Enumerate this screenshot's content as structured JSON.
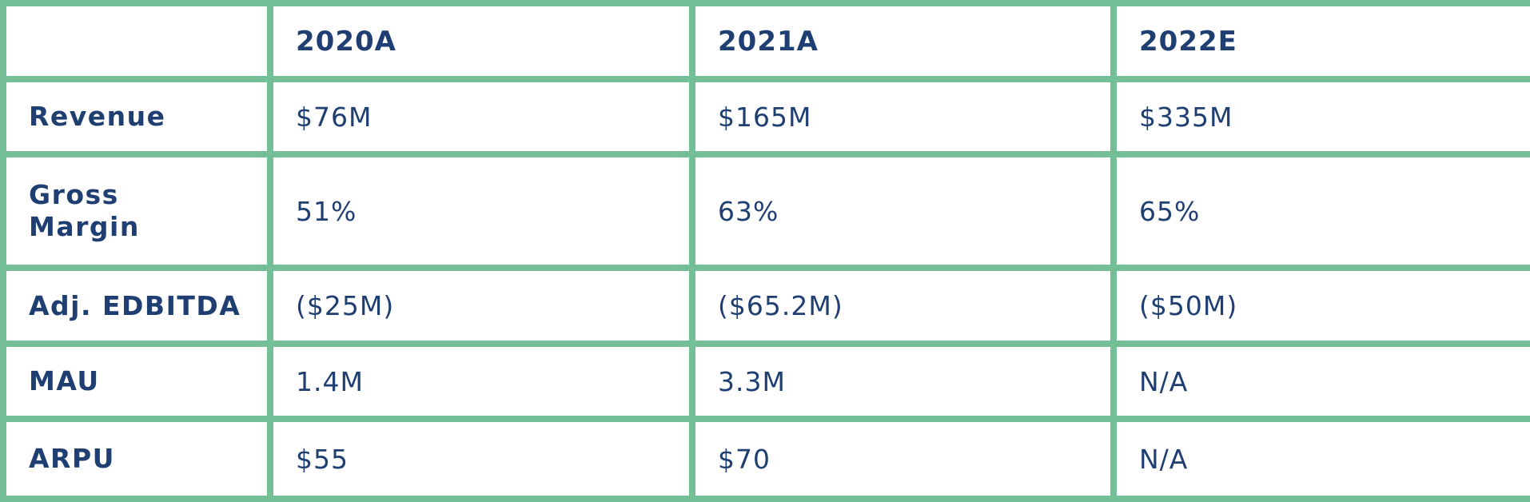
{
  "table": {
    "columns": [
      "",
      "2020A",
      "2021A",
      "2022E"
    ],
    "rows": [
      {
        "label": "Revenue",
        "values": [
          "$76M",
          "$165M",
          "$335M"
        ]
      },
      {
        "label": "Gross Margin",
        "label_lines": [
          "Gross",
          "Margin"
        ],
        "values": [
          "51%",
          "63%",
          "65%"
        ]
      },
      {
        "label": "Adj. EDBITDA",
        "values": [
          "($25M)",
          "($65.2M)",
          "($50M)"
        ]
      },
      {
        "label": "MAU",
        "values": [
          "1.4M",
          "3.3M",
          "N/A"
        ]
      },
      {
        "label": "ARPU",
        "values": [
          "$55",
          "$70",
          "N/A"
        ]
      }
    ]
  },
  "colors": {
    "grid_border": "#74bf95",
    "text": "#1f3f73",
    "cell_background": "#ffffff"
  }
}
